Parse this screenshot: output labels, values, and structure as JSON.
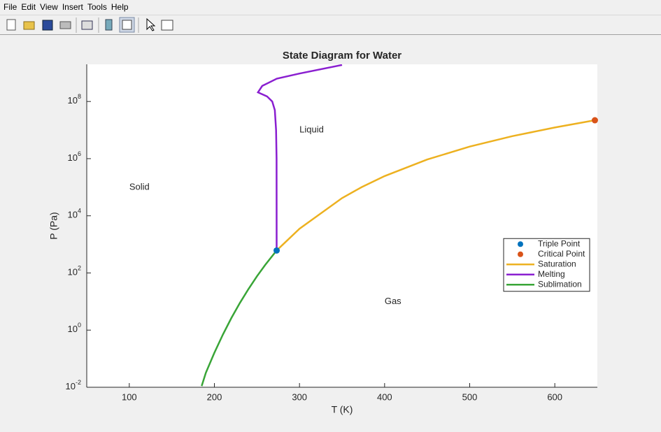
{
  "menu": [
    "File",
    "Edit",
    "View",
    "Insert",
    "Tools",
    "Help"
  ],
  "chart_data": {
    "type": "line",
    "title": "State Diagram for Water",
    "x_label": "T (K)",
    "y_label": "P (Pa)",
    "xlim": [
      50,
      650
    ],
    "xticks": [
      100,
      200,
      300,
      400,
      500,
      600
    ],
    "ylim": [
      0.01,
      2000000000
    ],
    "log_y": true,
    "yticks": [
      {
        "value": 0.01,
        "label": "10",
        "exponent": "-2"
      },
      {
        "value": 1,
        "label": "10",
        "exponent": "0"
      },
      {
        "value": 100,
        "label": "10",
        "exponent": "2"
      },
      {
        "value": 10000,
        "label": "10",
        "exponent": "4"
      },
      {
        "value": 1000000,
        "label": "10",
        "exponent": "6"
      },
      {
        "value": 100000000,
        "label": "10",
        "exponent": "8"
      }
    ],
    "legend": "east",
    "series": [
      {
        "name": "Triple Point",
        "color": "#0072bd",
        "marker": true,
        "x": [
          273.16
        ],
        "values": [
          611.657
        ]
      },
      {
        "name": "Critical Point",
        "color": "#d95319",
        "marker": true,
        "x": [
          647.1
        ],
        "values": [
          22064000
        ]
      },
      {
        "name": "Saturation",
        "color": "#edb120",
        "x": [
          273.16,
          300,
          350,
          373.15,
          400,
          450,
          500,
          550,
          600,
          647.1
        ],
        "values": [
          611.657,
          3537,
          41680,
          101325,
          245800,
          932000,
          2640000,
          6120000,
          12300000,
          22064000
        ]
      },
      {
        "name": "Melting",
        "color": "#8a1fd0",
        "x": [
          273.16,
          273.1,
          272.5,
          271,
          268,
          262,
          251.2,
          256.2,
          273.31,
          300,
          350
        ],
        "values": [
          611.657,
          1000000,
          10000000,
          50000000,
          100000000,
          150000000,
          209000000,
          350000000,
          632000000,
          950000000,
          1900000000
        ]
      },
      {
        "name": "Sublimation",
        "color": "#39a537",
        "x": [
          185,
          190,
          200,
          210,
          220,
          230,
          240,
          250,
          260,
          273.16
        ],
        "values": [
          0.011,
          0.032,
          0.162,
          0.701,
          2.65,
          8.94,
          27.3,
          76,
          195.8,
          611.657
        ]
      }
    ],
    "annotations": [
      {
        "text": "Liquid",
        "x": 300,
        "y": 10000000
      },
      {
        "text": "Solid",
        "x": 100,
        "y": 100000
      },
      {
        "text": "Gas",
        "x": 400,
        "y": 10
      }
    ]
  }
}
